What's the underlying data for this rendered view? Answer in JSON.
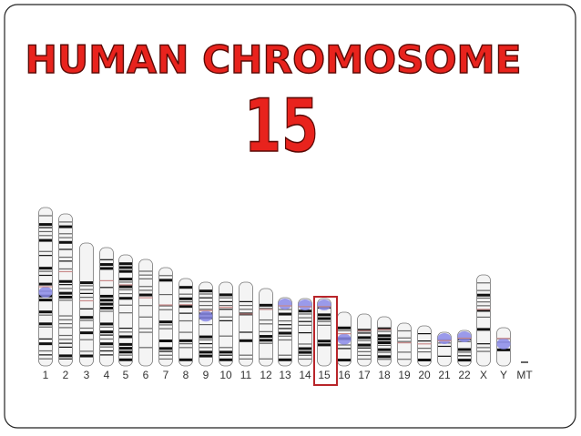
{
  "title": "HUMAN CHROMOSOME",
  "number": "15",
  "chromosomes": [
    "1",
    "2",
    "3",
    "4",
    "5",
    "6",
    "7",
    "8",
    "9",
    "10",
    "11",
    "12",
    "13",
    "14",
    "15",
    "16",
    "17",
    "18",
    "19",
    "20",
    "21",
    "22",
    "X",
    "Y",
    "MT"
  ]
}
